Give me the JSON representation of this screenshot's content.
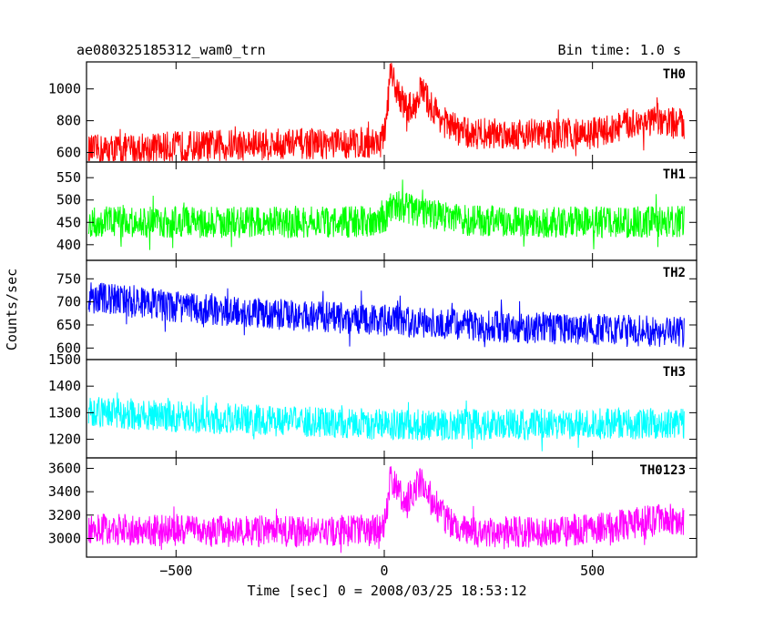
{
  "chart_data": {
    "type": "line",
    "title_left": "ae080325185312_wam0_trn",
    "title_right": "Bin time: 1.0 s",
    "xlabel": "Time [sec] 0 = 2008/03/25 18:53:12",
    "ylabel": "Counts/sec",
    "xlim": [
      -715,
      750
    ],
    "x_range": [
      -710,
      720
    ],
    "x_ticks": [
      -500,
      0,
      500
    ],
    "grid": false,
    "series": [
      {
        "name": "TH0",
        "color": "#ff0000",
        "ylim": [
          540,
          1170
        ],
        "y_ticks": [
          600,
          800,
          1000
        ],
        "x": [
          -710,
          -600,
          -500,
          -400,
          -300,
          -200,
          -100,
          -10,
          0,
          15,
          30,
          50,
          70,
          88,
          110,
          150,
          200,
          300,
          400,
          500,
          550,
          600,
          650,
          720
        ],
        "y": [
          610,
          625,
          635,
          645,
          650,
          655,
          655,
          665,
          700,
          1080,
          1000,
          890,
          880,
          1000,
          900,
          775,
          720,
          720,
          715,
          720,
          750,
          790,
          790,
          780
        ]
      },
      {
        "name": "TH1",
        "color": "#00ff00",
        "ylim": [
          365,
          585
        ],
        "y_ticks": [
          400,
          450,
          500,
          550
        ],
        "x": [
          -710,
          -500,
          -200,
          -10,
          0,
          20,
          60,
          100,
          200,
          400,
          720
        ],
        "y": [
          452,
          450,
          450,
          452,
          458,
          490,
          480,
          470,
          455,
          450,
          452
        ]
      },
      {
        "name": "TH2",
        "color": "#0000ff",
        "ylim": [
          575,
          790
        ],
        "y_ticks": [
          600,
          650,
          700,
          750
        ],
        "x": [
          -710,
          -500,
          -200,
          0,
          300,
          720
        ],
        "y": [
          710,
          690,
          670,
          660,
          645,
          635
        ]
      },
      {
        "name": "TH3",
        "color": "#00ffff",
        "ylim": [
          1130,
          1500
        ],
        "y_ticks": [
          1200,
          1300,
          1400,
          1500
        ],
        "x": [
          -710,
          -500,
          -200,
          0,
          300,
          720
        ],
        "y": [
          1305,
          1285,
          1265,
          1255,
          1255,
          1260
        ]
      },
      {
        "name": "TH0123",
        "color": "#ff00ff",
        "ylim": [
          2840,
          3690
        ],
        "y_ticks": [
          3000,
          3200,
          3400,
          3600
        ],
        "x": [
          -710,
          -500,
          -200,
          -10,
          0,
          15,
          50,
          88,
          150,
          200,
          400,
          550,
          650,
          720
        ],
        "y": [
          3080,
          3065,
          3060,
          3070,
          3100,
          3520,
          3310,
          3480,
          3150,
          3050,
          3060,
          3100,
          3160,
          3150
        ]
      }
    ]
  }
}
